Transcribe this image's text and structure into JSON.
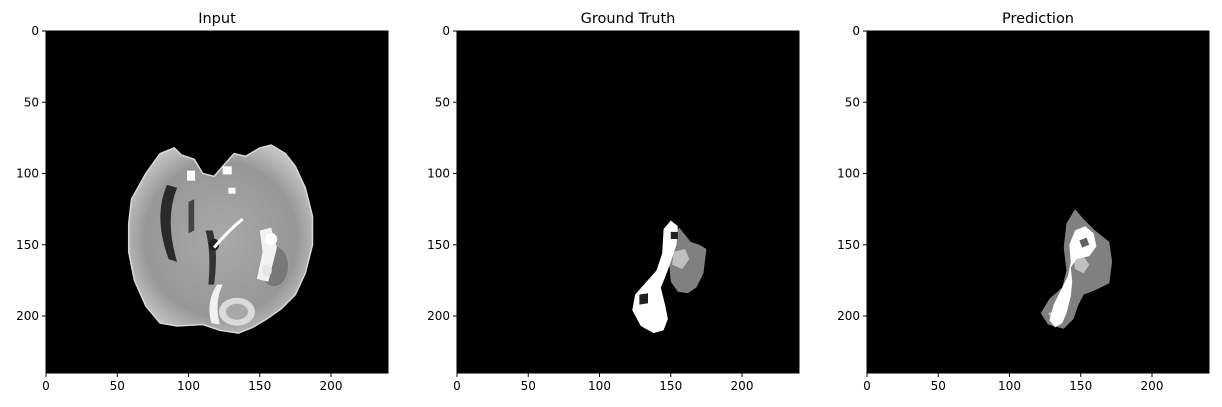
{
  "chart_data": [
    {
      "type": "heatmap",
      "title": "Input",
      "xlabel": "",
      "ylabel": "",
      "xlim": [
        0,
        240
      ],
      "ylim": [
        240,
        0
      ],
      "xticks": [
        0,
        50,
        100,
        150,
        200
      ],
      "yticks": [
        0,
        50,
        100,
        150,
        200
      ],
      "colormap": "gray",
      "grid": false,
      "background_color": "#000000"
    },
    {
      "type": "heatmap",
      "title": "Ground Truth",
      "xlabel": "",
      "ylabel": "",
      "xlim": [
        0,
        240
      ],
      "ylim": [
        240,
        0
      ],
      "xticks": [
        0,
        50,
        100,
        150,
        200
      ],
      "yticks": [
        0,
        50,
        100,
        150,
        200
      ],
      "colormap": "gray",
      "grid": false,
      "background_color": "#000000",
      "classes": [
        {
          "color": "#808080",
          "regions": [
            [
              [
                152,
                143
              ],
              [
                156,
                138
              ],
              [
                164,
                148
              ],
              [
                170,
                150
              ],
              [
                175,
                153
              ],
              [
                173,
                170
              ],
              [
                168,
                180
              ],
              [
                162,
                184
              ],
              [
                155,
                183
              ],
              [
                150,
                176
              ],
              [
                149,
                164
              ]
            ]
          ]
        },
        {
          "color": "#c0c0c0",
          "regions": [
            [
              [
                152,
                155
              ],
              [
                160,
                153
              ],
              [
                163,
                160
              ],
              [
                158,
                167
              ],
              [
                151,
                164
              ]
            ],
            [
              [
                132,
                196
              ],
              [
                140,
                192
              ],
              [
                146,
                196
              ],
              [
                145,
                203
              ],
              [
                138,
                206
              ],
              [
                131,
                202
              ]
            ]
          ]
        },
        {
          "color": "#ffffff",
          "regions": [
            [
              [
                145,
                139
              ],
              [
                150,
                133
              ],
              [
                155,
                137
              ],
              [
                154,
                150
              ],
              [
                150,
                162
              ],
              [
                146,
                173
              ],
              [
                143,
                180
              ],
              [
                146,
                192
              ],
              [
                148,
                202
              ],
              [
                145,
                210
              ],
              [
                138,
                212
              ],
              [
                129,
                207
              ],
              [
                123,
                196
              ],
              [
                125,
                185
              ],
              [
                133,
                176
              ],
              [
                140,
                168
              ],
              [
                144,
                156
              ]
            ]
          ]
        },
        {
          "color": "#202020",
          "regions": [
            [
              [
                150,
                141
              ],
              [
                155,
                141
              ],
              [
                155,
                146
              ],
              [
                150,
                146
              ]
            ],
            [
              [
                128,
                185
              ],
              [
                134,
                184
              ],
              [
                134,
                191
              ],
              [
                128,
                192
              ]
            ]
          ]
        }
      ]
    },
    {
      "type": "heatmap",
      "title": "Prediction",
      "xlabel": "",
      "ylabel": "",
      "xlim": [
        0,
        240
      ],
      "ylim": [
        240,
        0
      ],
      "xticks": [
        0,
        50,
        100,
        150,
        200
      ],
      "yticks": [
        0,
        50,
        100,
        150,
        200
      ],
      "colormap": "gray",
      "grid": false,
      "background_color": "#000000",
      "classes": [
        {
          "color": "#808080",
          "regions": [
            [
              [
                140,
                135
              ],
              [
                146,
                125
              ],
              [
                152,
                132
              ],
              [
                160,
                140
              ],
              [
                170,
                148
              ],
              [
                172,
                162
              ],
              [
                170,
                177
              ],
              [
                160,
                182
              ],
              [
                152,
                185
              ],
              [
                148,
                193
              ],
              [
                145,
                202
              ],
              [
                138,
                209
              ],
              [
                127,
                206
              ],
              [
                122,
                198
              ],
              [
                128,
                188
              ],
              [
                137,
                180
              ],
              [
                140,
                168
              ],
              [
                138,
                152
              ]
            ]
          ]
        },
        {
          "color": "#c0c0c0",
          "regions": [
            [
              [
                145,
                160
              ],
              [
                152,
                158
              ],
              [
                156,
                164
              ],
              [
                152,
                170
              ],
              [
                146,
                167
              ]
            ],
            [
              [
                127,
                198
              ],
              [
                134,
                196
              ],
              [
                138,
                202
              ],
              [
                132,
                206
              ]
            ]
          ]
        },
        {
          "color": "#ffffff",
          "regions": [
            [
              [
                142,
                150
              ],
              [
                146,
                140
              ],
              [
                153,
                137
              ],
              [
                159,
                142
              ],
              [
                161,
                151
              ],
              [
                156,
                158
              ],
              [
                147,
                160
              ],
              [
                143,
                166
              ],
              [
                144,
                176
              ],
              [
                143,
                186
              ],
              [
                140,
                198
              ],
              [
                137,
                205
              ],
              [
                132,
                208
              ],
              [
                128,
                203
              ],
              [
                131,
                192
              ],
              [
                136,
                182
              ],
              [
                141,
                172
              ],
              [
                143,
                162
              ]
            ]
          ]
        },
        {
          "color": "#606060",
          "regions": [
            [
              [
                149,
                147
              ],
              [
                154,
                145
              ],
              [
                156,
                150
              ],
              [
                151,
                152
              ]
            ]
          ]
        }
      ]
    }
  ]
}
